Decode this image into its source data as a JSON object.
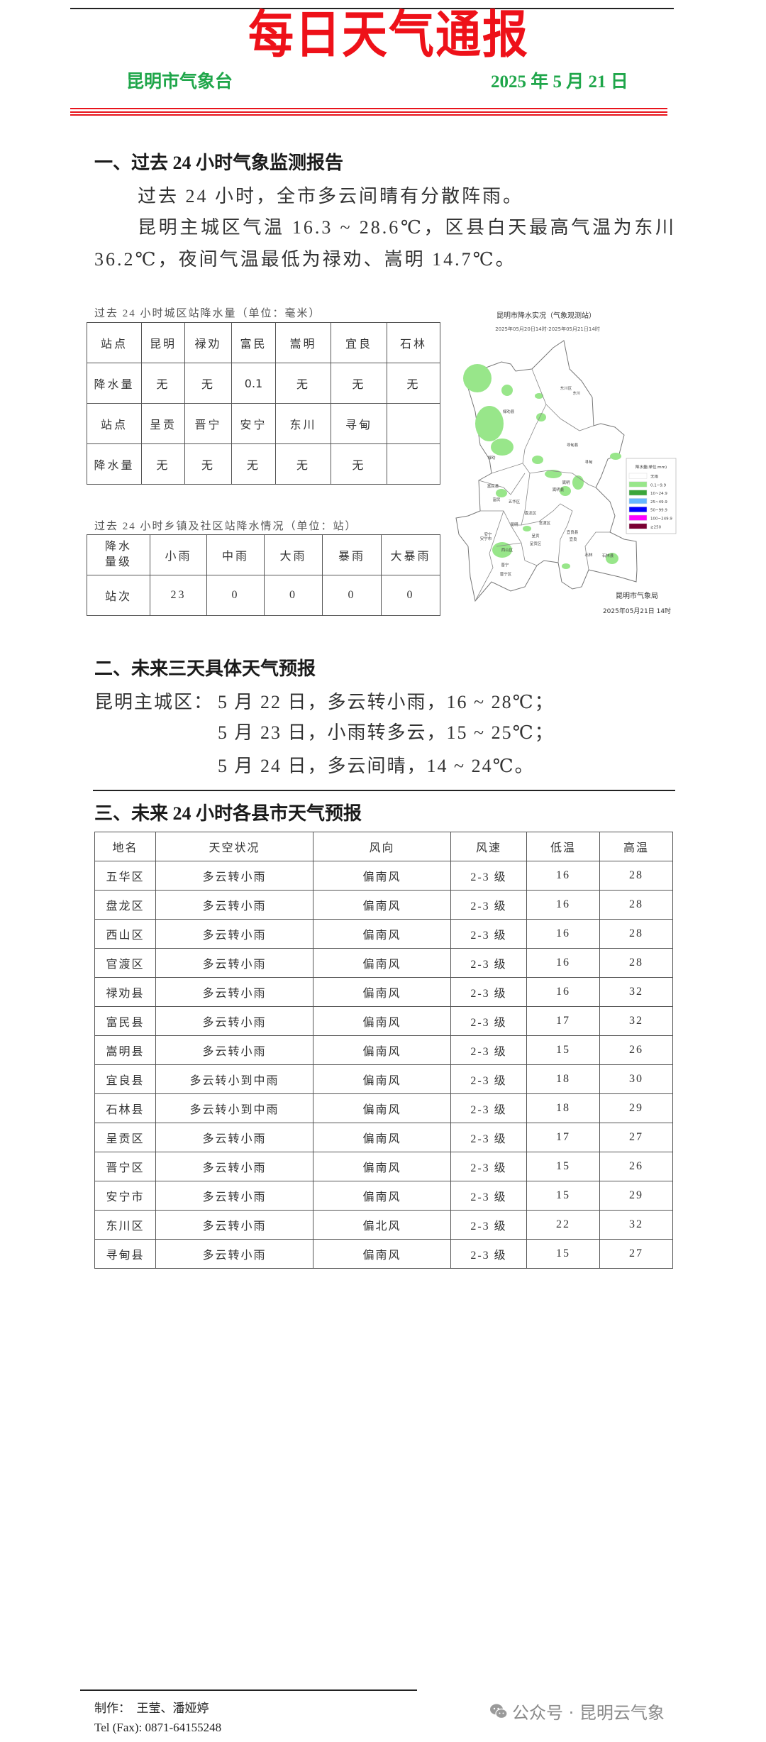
{
  "header": {
    "title": "每日天气通报",
    "agency": "昆明市气象台",
    "date": "2025 年 5 月 21 日",
    "title_color": "#ee1119",
    "subheader_color": "#1fa64a"
  },
  "section1": {
    "heading": "一、过去 24 小时气象监测报告",
    "para1": "过去 24 小时，全市多云间晴有分散阵雨。",
    "para2": "昆明主城区气温 16.3 ~ 28.6℃，区县白天最高气温为东川 36.2℃，夜间气温最低为禄劝、嵩明 14.7℃。",
    "table1": {
      "caption": "过去 24 小时城区站降水量（单位：毫米）",
      "rows": [
        [
          "站点",
          "昆明",
          "禄劝",
          "富民",
          "嵩明",
          "宜良",
          "石林"
        ],
        [
          "降水量",
          "无",
          "无",
          "0.1",
          "无",
          "无",
          "无"
        ],
        [
          "站点",
          "呈贡",
          "晋宁",
          "安宁",
          "东川",
          "寻甸",
          ""
        ],
        [
          "降水量",
          "无",
          "无",
          "无",
          "无",
          "无",
          ""
        ]
      ]
    },
    "table2": {
      "caption": "过去 24 小时乡镇及社区站降水情况（单位：站）",
      "header": [
        "降水量级",
        "小雨",
        "中雨",
        "大雨",
        "暴雨",
        "大暴雨"
      ],
      "row": [
        "站次",
        "23",
        "0",
        "0",
        "0",
        "0"
      ]
    },
    "map": {
      "title": "昆明市降水实况（气象观测站）",
      "subtitle": "2025年05月20日14时-2025年05月21日14时",
      "source": "昆明市气象局",
      "issued": "2025年05月21日 14时",
      "legend_title": "降水量(单位:mm)",
      "legend": [
        {
          "label": "无雨",
          "color": "#ffffff"
        },
        {
          "label": "0.1~9.9",
          "color": "#98e68a"
        },
        {
          "label": "10~24.9",
          "color": "#3aa63a"
        },
        {
          "label": "25~49.9",
          "color": "#66b8ff"
        },
        {
          "label": "50~99.9",
          "color": "#0000ff"
        },
        {
          "label": "100~249.9",
          "color": "#ff00ff"
        },
        {
          "label": "≥250",
          "color": "#7a0033"
        }
      ],
      "labels": [
        "东川区",
        "东川",
        "禄劝县",
        "禄劝",
        "寻甸县",
        "寻甸",
        "嵩明",
        "嵩明县",
        "富民县",
        "富民",
        "五华区",
        "盘龙区",
        "昆明",
        "官渡区",
        "安宁",
        "安宁市",
        "呈贡",
        "呈贡区",
        "宜良县",
        "宜良",
        "西山区",
        "石林",
        "石林县",
        "晋宁",
        "晋宁区"
      ]
    }
  },
  "section2": {
    "heading": "二、未来三天具体天气预报",
    "label": "昆明主城区：",
    "lines": [
      "5 月 22 日，多云转小雨，16 ~ 28℃；",
      "5 月 23 日，小雨转多云，15 ~ 25℃；",
      "5 月 24 日，多云间晴，14 ~ 24℃。"
    ]
  },
  "section3": {
    "heading": "三、未来 24 小时各县市天气预报",
    "columns": [
      "地名",
      "天空状况",
      "风向",
      "风速",
      "低温",
      "高温"
    ],
    "rows": [
      [
        "五华区",
        "多云转小雨",
        "偏南风",
        "2-3 级",
        "16",
        "28"
      ],
      [
        "盘龙区",
        "多云转小雨",
        "偏南风",
        "2-3 级",
        "16",
        "28"
      ],
      [
        "西山区",
        "多云转小雨",
        "偏南风",
        "2-3 级",
        "16",
        "28"
      ],
      [
        "官渡区",
        "多云转小雨",
        "偏南风",
        "2-3 级",
        "16",
        "28"
      ],
      [
        "禄劝县",
        "多云转小雨",
        "偏南风",
        "2-3 级",
        "16",
        "32"
      ],
      [
        "富民县",
        "多云转小雨",
        "偏南风",
        "2-3 级",
        "17",
        "32"
      ],
      [
        "嵩明县",
        "多云转小雨",
        "偏南风",
        "2-3 级",
        "15",
        "26"
      ],
      [
        "宜良县",
        "多云转小到中雨",
        "偏南风",
        "2-3 级",
        "18",
        "30"
      ],
      [
        "石林县",
        "多云转小到中雨",
        "偏南风",
        "2-3 级",
        "18",
        "29"
      ],
      [
        "呈贡区",
        "多云转小雨",
        "偏南风",
        "2-3 级",
        "17",
        "27"
      ],
      [
        "晋宁区",
        "多云转小雨",
        "偏南风",
        "2-3 级",
        "15",
        "26"
      ],
      [
        "安宁市",
        "多云转小雨",
        "偏南风",
        "2-3 级",
        "15",
        "29"
      ],
      [
        "东川区",
        "多云转小雨",
        "偏北风",
        "2-3 级",
        "22",
        "32"
      ],
      [
        "寻甸县",
        "多云转小雨",
        "偏南风",
        "2-3 级",
        "15",
        "27"
      ]
    ]
  },
  "footer": {
    "authors": "制作：  王莹、潘娅婷",
    "tel": "Tel (Fax): 0871-64155248",
    "watermark": "公众号 · 昆明云气象",
    "watermark_icon": "wechat-icon"
  }
}
